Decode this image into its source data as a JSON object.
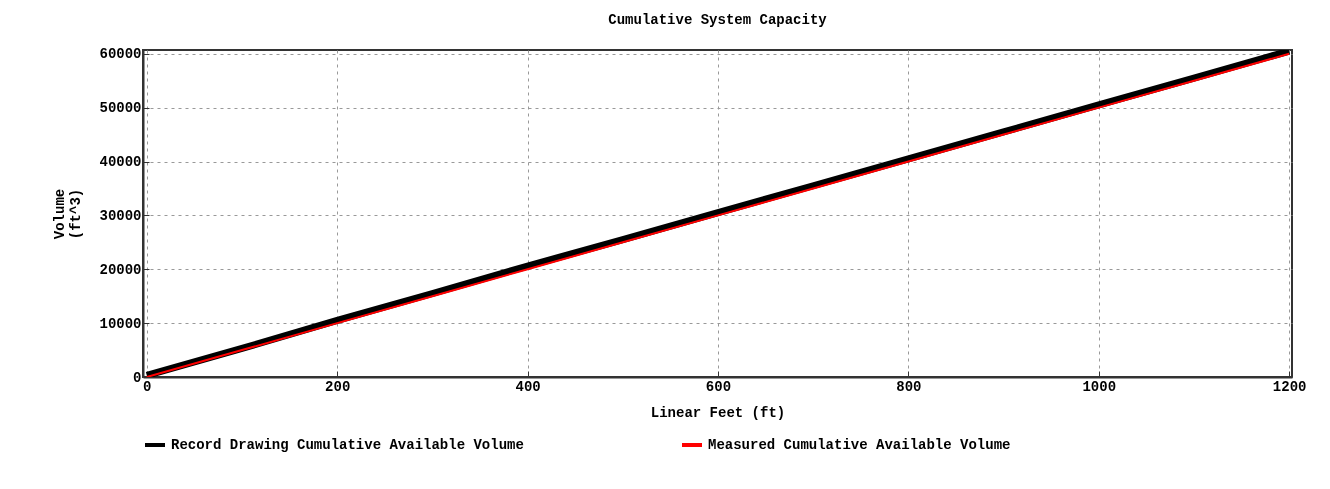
{
  "chart_data": {
    "type": "line",
    "title": "Cumulative System Capacity",
    "xlabel": "Linear Feet (ft)",
    "ylabel": "Volume (ft^3)",
    "x": [
      0,
      100,
      200,
      300,
      400,
      500,
      600,
      700,
      800,
      900,
      1000,
      1100,
      1200
    ],
    "series": [
      {
        "name": "Record Drawing Cumulative Available Volume",
        "color": "#000000",
        "values": [
          300,
          5300,
          10500,
          15500,
          20600,
          25500,
          30500,
          35500,
          40500,
          45500,
          50500,
          55500,
          60500
        ]
      },
      {
        "name": "Measured Cumulative Available Volume",
        "color": "#ff0000",
        "values": [
          0,
          5000,
          10000,
          15000,
          20000,
          25000,
          30000,
          35000,
          40000,
          45000,
          50000,
          55000,
          60000
        ]
      }
    ],
    "xlim": [
      -4,
      1203
    ],
    "ylim": [
      0,
      60700
    ],
    "xticks": [
      0,
      200,
      400,
      600,
      800,
      1000,
      1200
    ],
    "yticks": [
      0,
      10000,
      20000,
      30000,
      40000,
      50000,
      60000
    ],
    "grid": true,
    "legend": "bottom",
    "marker": "none",
    "line_style": "solid"
  }
}
